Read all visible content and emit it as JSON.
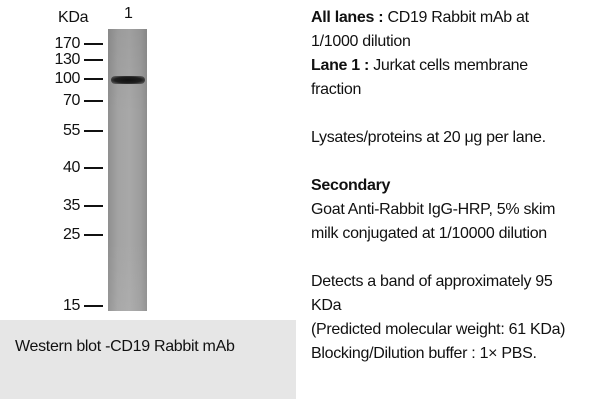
{
  "blot": {
    "unit_label": "KDa",
    "lane_label": "1",
    "markers": [
      "170",
      "130",
      "100",
      "70",
      "55",
      "40",
      "35",
      "25",
      "15"
    ],
    "band_kda": 95
  },
  "caption": "Western blot -CD19 Rabbit mAb",
  "description": {
    "all_lanes_label": "All lanes :",
    "all_lanes_line1": "CD19 Rabbit mAb at",
    "all_lanes_line2": "1/1000 dilution",
    "lane1_label": "Lane 1 :",
    "lane1_line1": "Jurkat cells membrane",
    "lane1_line2": "fraction",
    "lysates": "Lysates/proteins at 20 μg per lane.",
    "secondary_heading": "Secondary",
    "secondary_line1": "Goat Anti-Rabbit IgG-HRP, 5% skim",
    "secondary_line2": "milk conjugated at 1/10000 dilution",
    "detects_line1": "Detects a band of approximately 95",
    "detects_line2": "KDa",
    "predicted": "(Predicted molecular weight: 61 KDa)",
    "blocking": "Blocking/Dilution buffer : 1× PBS."
  }
}
